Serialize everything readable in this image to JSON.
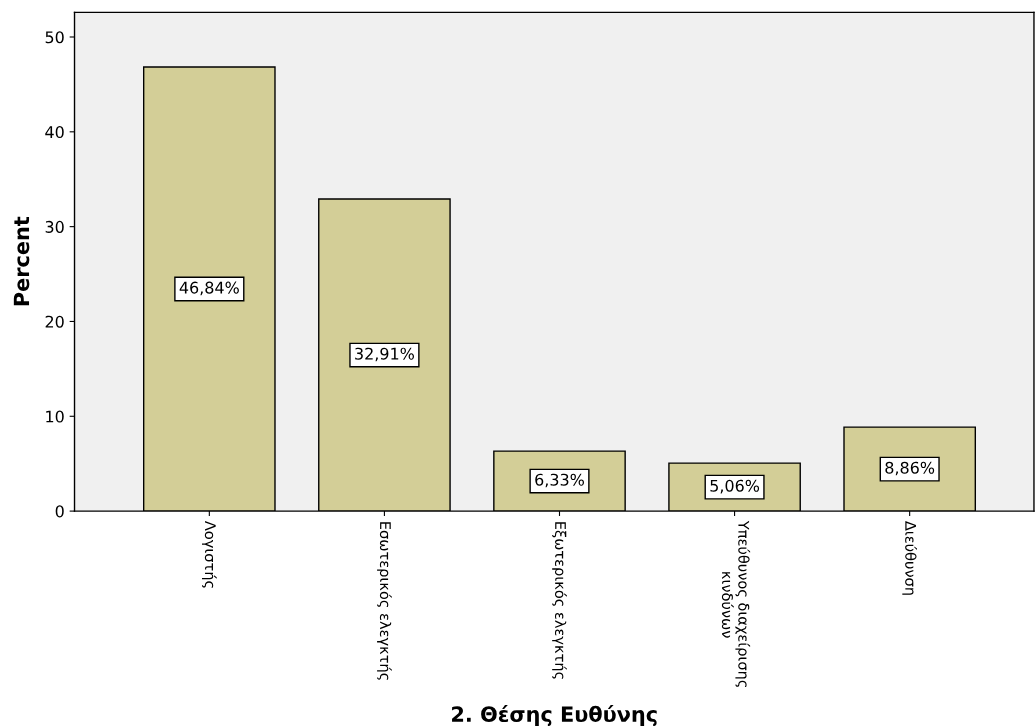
{
  "chart_data": {
    "type": "bar",
    "xlabel": "2. Θέσης Ευθύνης",
    "ylabel": "Percent",
    "categories": [
      "Λογιστής",
      "Εσωτερικός ελεγκτής",
      "Εξωτερικός ελεγκτής",
      "Υπεύθυνος διαχείρισης\nκινδύνων",
      "Διεύθυνση"
    ],
    "values": [
      46.84,
      32.91,
      6.33,
      5.06,
      8.86
    ],
    "value_labels": [
      "46,84%",
      "32,91%",
      "6,33%",
      "5,06%",
      "8,86%"
    ],
    "color": "#d3ce97",
    "ylim": [
      0,
      52.6
    ],
    "yticks": [
      0,
      10,
      20,
      30,
      40,
      50
    ],
    "grid": false
  }
}
